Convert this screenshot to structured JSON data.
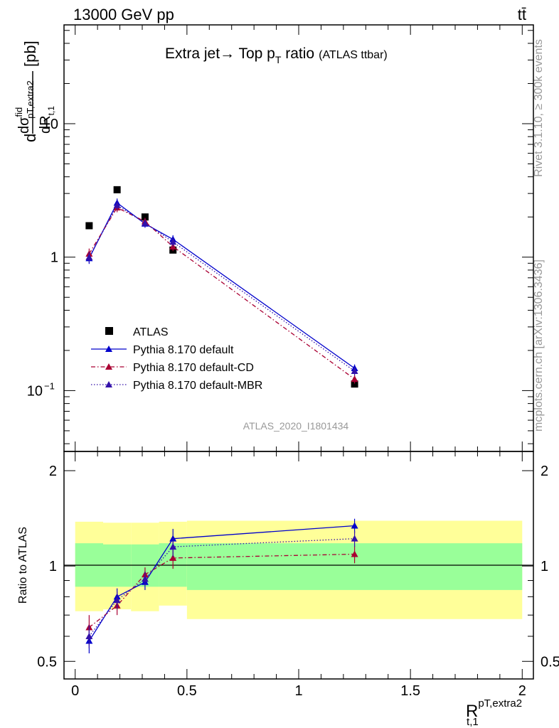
{
  "header": {
    "energy": "13000 GeV pp",
    "process": "tt̄"
  },
  "side": {
    "rivet": "Rivet 3.1.10, ≥ 300k events",
    "mcplots": "mcplots.cern.ch [arXiv:1306.3436]"
  },
  "colors": {
    "atlas": "#000000",
    "default": "#0000cc",
    "cd": "#aa0033",
    "mbr": "#3311aa",
    "band_inner": "#99ff99",
    "band_outer": "#ffff99"
  },
  "chart_data": [
    {
      "type": "line",
      "title": "Extra jet→ Top p",
      "title_sub": "T",
      "title_tail": " ratio",
      "title_small": "(ATLAS ttbar)",
      "analysis_tag": "ATLAS_2020_I1801434",
      "ylabel_parts": {
        "d": "d",
        "sigma": "dσ",
        "sigma_sup": "fid",
        "sigma_sub": "pT,extra2",
        "dR": "dR",
        "dR_sub": "t,1",
        "unit": "[pb]"
      },
      "yscale": "log",
      "ylim": [
        0.035,
        55
      ],
      "xlim": [
        -0.05,
        2.05
      ],
      "yticks": [
        {
          "v": 0.1,
          "label": "10",
          "sup": "−1"
        },
        {
          "v": 1,
          "label": "1",
          "sup": ""
        },
        {
          "v": 10,
          "label": "10",
          "sup": ""
        }
      ],
      "legend_placement": "lower-left",
      "series": [
        {
          "name": "ATLAS",
          "marker": "square",
          "style": "none",
          "x": [
            0.0625,
            0.1875,
            0.3125,
            0.4375,
            1.25
          ],
          "y": [
            1.72,
            3.2,
            2.0,
            1.13,
            0.112
          ]
        },
        {
          "name": "Pythia 8.170 default",
          "marker": "triangle",
          "style": "solid",
          "x": [
            0.0625,
            0.1875,
            0.3125,
            0.4375,
            1.25
          ],
          "y": [
            0.98,
            2.55,
            1.78,
            1.36,
            0.147
          ],
          "err": [
            0.09,
            0.2,
            0.12,
            0.1,
            0.01
          ]
        },
        {
          "name": "Pythia 8.170 default-CD",
          "marker": "triangle",
          "style": "dashdot",
          "x": [
            0.0625,
            0.1875,
            0.3125,
            0.4375,
            1.25
          ],
          "y": [
            1.06,
            2.35,
            1.85,
            1.2,
            0.122
          ],
          "err": [
            0.1,
            0.18,
            0.12,
            0.09,
            0.009
          ]
        },
        {
          "name": "Pythia 8.170 default-MBR",
          "marker": "triangle",
          "style": "dotted",
          "x": [
            0.0625,
            0.1875,
            0.3125,
            0.4375,
            1.25
          ],
          "y": [
            1.0,
            2.45,
            1.8,
            1.3,
            0.14
          ],
          "err": [
            0.09,
            0.19,
            0.12,
            0.1,
            0.01
          ]
        }
      ]
    },
    {
      "type": "line",
      "ylabel": "Ratio to ATLAS",
      "xlabel": "R",
      "xlabel_sup": "pT,extra2",
      "xlabel_sub": "t,1",
      "yscale": "log",
      "ylim": [
        0.44,
        2.3
      ],
      "xlim": [
        -0.05,
        2.05
      ],
      "yticks": [
        0.5,
        1,
        2
      ],
      "xticks": [
        0,
        0.5,
        1,
        1.5,
        2
      ],
      "xtick_labels": [
        "0",
        "0.5",
        "1",
        "1.5",
        "2"
      ],
      "ytick_labels": [
        "0.5",
        "1",
        "2"
      ],
      "bands": {
        "edges": [
          0,
          0.125,
          0.25,
          0.375,
          0.5,
          2.0
        ],
        "inner_lo": [
          0.86,
          0.86,
          0.86,
          0.86,
          0.84
        ],
        "inner_hi": [
          1.18,
          1.17,
          1.17,
          1.18,
          1.18
        ],
        "outer_lo": [
          0.72,
          0.73,
          0.72,
          0.75,
          0.68
        ],
        "outer_hi": [
          1.38,
          1.37,
          1.37,
          1.38,
          1.39
        ]
      },
      "series": [
        {
          "name": "Pythia 8.170 default",
          "style": "solid",
          "x": [
            0.0625,
            0.1875,
            0.3125,
            0.4375,
            1.25
          ],
          "y": [
            0.58,
            0.8,
            0.89,
            1.22,
            1.34
          ],
          "err": [
            0.05,
            0.05,
            0.05,
            0.09,
            0.07
          ]
        },
        {
          "name": "Pythia 8.170 default-CD",
          "style": "dashdot",
          "x": [
            0.0625,
            0.1875,
            0.3125,
            0.4375,
            1.25
          ],
          "y": [
            0.64,
            0.75,
            0.94,
            1.06,
            1.09
          ],
          "err": [
            0.06,
            0.05,
            0.05,
            0.08,
            0.07
          ]
        },
        {
          "name": "Pythia 8.170 default-MBR",
          "style": "dotted",
          "x": [
            0.0625,
            0.1875,
            0.3125,
            0.4375,
            1.25
          ],
          "y": [
            0.6,
            0.78,
            0.91,
            1.15,
            1.22
          ],
          "err": [
            0.05,
            0.05,
            0.05,
            0.08,
            0.07
          ]
        }
      ]
    }
  ]
}
